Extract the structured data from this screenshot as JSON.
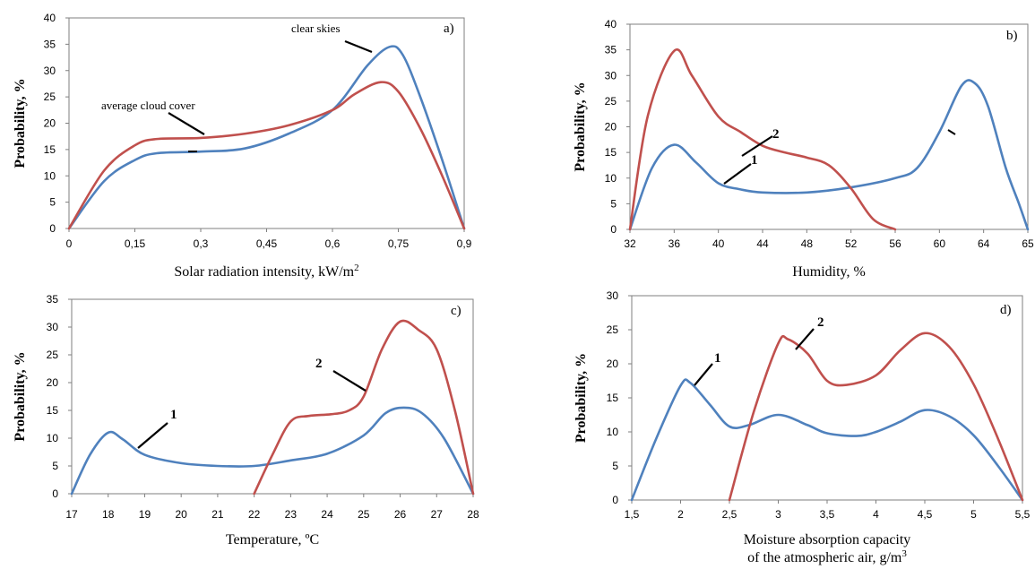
{
  "colors": {
    "blue": "#4f81bd",
    "red": "#c0504d",
    "axis": "#7f7f7f"
  },
  "chart_data": [
    {
      "id": "a",
      "type": "line",
      "panel_label": "a)",
      "xlabel": "Solar radiation intensity, kW/m",
      "xlabel_sup": "2",
      "ylabel": "Probability, %",
      "xlim": [
        0,
        0.9
      ],
      "ylim": [
        0,
        40
      ],
      "xticks": [
        0,
        0.15,
        0.3,
        0.45,
        0.6,
        0.75,
        0.9
      ],
      "xtick_labels": [
        "0",
        "0,15",
        "0,3",
        "0,45",
        "0,6",
        "0,75",
        "0,9"
      ],
      "yticks": [
        0,
        5,
        10,
        15,
        20,
        25,
        30,
        35,
        40
      ],
      "series": [
        {
          "name": "clear skies",
          "color": "#4f81bd",
          "points": [
            [
              0,
              0
            ],
            [
              0.08,
              9
            ],
            [
              0.15,
              13
            ],
            [
              0.2,
              14.3
            ],
            [
              0.3,
              14.6
            ],
            [
              0.4,
              15.2
            ],
            [
              0.5,
              18
            ],
            [
              0.6,
              22.5
            ],
            [
              0.68,
              31
            ],
            [
              0.73,
              34.5
            ],
            [
              0.76,
              33
            ],
            [
              0.8,
              25
            ],
            [
              0.85,
              13
            ],
            [
              0.9,
              0
            ]
          ]
        },
        {
          "name": "average cloud cover",
          "color": "#c0504d",
          "points": [
            [
              0,
              0
            ],
            [
              0.08,
              11
            ],
            [
              0.15,
              15.8
            ],
            [
              0.2,
              17
            ],
            [
              0.3,
              17.2
            ],
            [
              0.4,
              18
            ],
            [
              0.5,
              19.6
            ],
            [
              0.6,
              22.5
            ],
            [
              0.65,
              25.5
            ],
            [
              0.71,
              27.8
            ],
            [
              0.75,
              26
            ],
            [
              0.8,
              19
            ],
            [
              0.85,
              10
            ],
            [
              0.9,
              0
            ]
          ]
        }
      ],
      "annotations": [
        {
          "text": "clear skies",
          "style": "ann"
        },
        {
          "text": "average cloud cover",
          "style": "ann"
        }
      ]
    },
    {
      "id": "b",
      "type": "line",
      "panel_label": "b)",
      "xlabel": "Humidity, %",
      "ylabel": "Probability, %",
      "ylim": [
        0,
        40
      ],
      "xtick_labels": [
        "32",
        "36",
        "40",
        "44",
        "48",
        "52",
        "56",
        "60",
        "64",
        "65"
      ],
      "yticks": [
        0,
        5,
        10,
        15,
        20,
        25,
        30,
        35,
        40
      ],
      "series": [
        {
          "name": "1",
          "color": "#4f81bd",
          "points": [
            [
              0,
              0
            ],
            [
              0.5,
              12
            ],
            [
              1,
              16.5
            ],
            [
              1.5,
              13
            ],
            [
              2,
              9
            ],
            [
              2.5,
              7.8
            ],
            [
              3,
              7.2
            ],
            [
              4,
              7.2
            ],
            [
              5,
              8.2
            ],
            [
              6,
              10
            ],
            [
              6.5,
              12
            ],
            [
              7,
              19
            ],
            [
              7.5,
              28
            ],
            [
              7.8,
              28.5
            ],
            [
              8.1,
              24
            ],
            [
              8.5,
              12
            ],
            [
              8.8,
              5
            ],
            [
              9,
              0
            ]
          ]
        },
        {
          "name": "2",
          "color": "#c0504d",
          "points": [
            [
              0,
              0
            ],
            [
              0.4,
              22
            ],
            [
              1,
              34.8
            ],
            [
              1.4,
              30
            ],
            [
              2,
              22
            ],
            [
              2.5,
              19
            ],
            [
              3,
              16.3
            ],
            [
              3.5,
              15
            ],
            [
              4,
              14
            ],
            [
              4.5,
              12.5
            ],
            [
              5,
              8
            ],
            [
              5.5,
              2
            ],
            [
              6,
              0
            ]
          ]
        }
      ],
      "annotations": [
        {
          "text": "2",
          "style": "annb"
        },
        {
          "text": "1",
          "style": "annb"
        }
      ]
    },
    {
      "id": "c",
      "type": "line",
      "panel_label": "c)",
      "xlabel": "Temperature, ºC",
      "ylabel": "Probability, %",
      "xlim": [
        17,
        28
      ],
      "ylim": [
        0,
        35
      ],
      "xticks": [
        17,
        18,
        19,
        20,
        21,
        22,
        23,
        24,
        25,
        26,
        27,
        28
      ],
      "xtick_labels": [
        "17",
        "18",
        "19",
        "20",
        "21",
        "22",
        "23",
        "24",
        "25",
        "26",
        "27",
        "28"
      ],
      "yticks": [
        0,
        5,
        10,
        15,
        20,
        25,
        30,
        35
      ],
      "series": [
        {
          "name": "1",
          "color": "#4f81bd",
          "points": [
            [
              17,
              0
            ],
            [
              17.5,
              7
            ],
            [
              18,
              11
            ],
            [
              18.4,
              9.8
            ],
            [
              19,
              7
            ],
            [
              20,
              5.5
            ],
            [
              21,
              5
            ],
            [
              22,
              5
            ],
            [
              23,
              6
            ],
            [
              24,
              7.2
            ],
            [
              25,
              10.5
            ],
            [
              25.6,
              14.5
            ],
            [
              26.1,
              15.5
            ],
            [
              26.6,
              14.5
            ],
            [
              27.2,
              10
            ],
            [
              28,
              0
            ]
          ]
        },
        {
          "name": "2",
          "color": "#c0504d",
          "points": [
            [
              22,
              0
            ],
            [
              22.5,
              7
            ],
            [
              23,
              13
            ],
            [
              23.5,
              14
            ],
            [
              24.1,
              14.3
            ],
            [
              24.6,
              15
            ],
            [
              25,
              17.5
            ],
            [
              25.5,
              26
            ],
            [
              26,
              31
            ],
            [
              26.5,
              29.5
            ],
            [
              27,
              26
            ],
            [
              27.5,
              15
            ],
            [
              28,
              0
            ]
          ]
        }
      ],
      "annotations": [
        {
          "text": "2",
          "style": "annb"
        },
        {
          "text": "1",
          "style": "annb"
        }
      ]
    },
    {
      "id": "d",
      "type": "line",
      "panel_label": "d)",
      "xlabel": "Moisture absorption capacity",
      "xlabel2": "of the atmospheric air, g/m",
      "xlabel_sup": "3",
      "ylabel": "Probability, %",
      "xlim": [
        1.5,
        5.5
      ],
      "ylim": [
        0,
        30
      ],
      "xticks": [
        1.5,
        2,
        2.5,
        3,
        3.5,
        4,
        4.5,
        5,
        5.5
      ],
      "xtick_labels": [
        "1,5",
        "2",
        "2,5",
        "3",
        "3,5",
        "4",
        "4,5",
        "5",
        "5,5"
      ],
      "yticks": [
        0,
        5,
        10,
        15,
        20,
        25,
        30
      ],
      "series": [
        {
          "name": "1",
          "color": "#4f81bd",
          "points": [
            [
              1.5,
              0
            ],
            [
              1.75,
              9
            ],
            [
              2,
              16.8
            ],
            [
              2.1,
              17.2
            ],
            [
              2.3,
              14
            ],
            [
              2.5,
              10.8
            ],
            [
              2.7,
              11
            ],
            [
              3,
              12.5
            ],
            [
              3.3,
              11
            ],
            [
              3.5,
              9.8
            ],
            [
              3.8,
              9.4
            ],
            [
              4,
              10
            ],
            [
              4.25,
              11.5
            ],
            [
              4.5,
              13.2
            ],
            [
              4.75,
              12.3
            ],
            [
              5,
              9.5
            ],
            [
              5.25,
              5
            ],
            [
              5.5,
              0
            ]
          ]
        },
        {
          "name": "2",
          "color": "#c0504d",
          "points": [
            [
              2.5,
              0
            ],
            [
              2.75,
              13
            ],
            [
              3,
              23
            ],
            [
              3.1,
              23.6
            ],
            [
              3.3,
              21.5
            ],
            [
              3.5,
              17.5
            ],
            [
              3.7,
              16.9
            ],
            [
              4,
              18.3
            ],
            [
              4.25,
              22
            ],
            [
              4.5,
              24.5
            ],
            [
              4.75,
              22.5
            ],
            [
              5,
              17
            ],
            [
              5.25,
              9
            ],
            [
              5.5,
              0
            ]
          ]
        }
      ],
      "annotations": [
        {
          "text": "2",
          "style": "annb"
        },
        {
          "text": "1",
          "style": "annb"
        }
      ]
    }
  ]
}
